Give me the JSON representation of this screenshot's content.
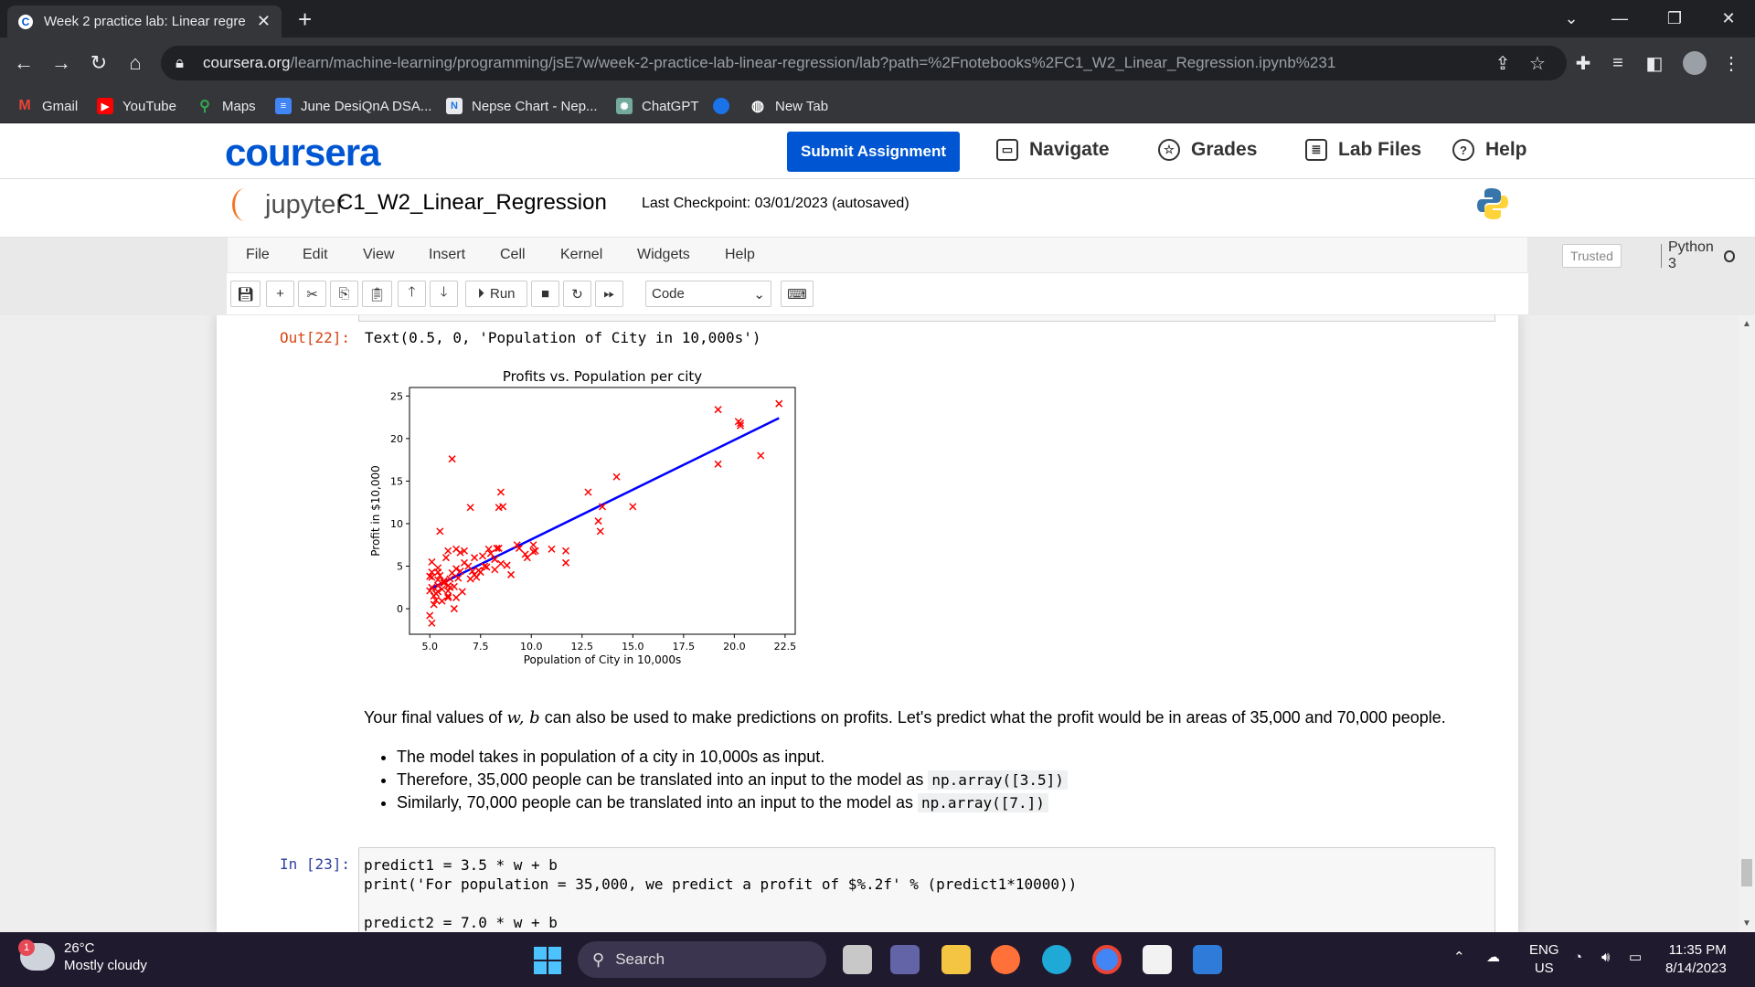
{
  "browser": {
    "tab_title": "Week 2 practice lab: Linear regre",
    "tab_favicon_letter": "C",
    "url_host": "coursera.org",
    "url_path": "/learn/machine-learning/programming/jsE7w/week-2-practice-lab-linear-regression/lab?path=%2Fnotebooks%2FC1_W2_Linear_Regression.ipynb%231",
    "bookmarks": [
      "Gmail",
      "YouTube",
      "Maps",
      "June DesiQnA DSA...",
      "Nepse Chart - Nep...",
      "ChatGPT",
      "",
      "New Tab"
    ]
  },
  "coursera": {
    "logo": "coursera",
    "submit_label": "Submit Assignment",
    "navigate_label": "Navigate",
    "grades_label": "Grades",
    "labfiles_label": "Lab Files",
    "help_label": "Help"
  },
  "jupyter": {
    "logo_text": "jupyter",
    "notebook_name": "C1_W2_Linear_Regression",
    "checkpoint": "Last Checkpoint: 03/01/2023  (autosaved)",
    "menu": [
      "File",
      "Edit",
      "View",
      "Insert",
      "Cell",
      "Kernel",
      "Widgets",
      "Help"
    ],
    "trusted": "Trusted",
    "kernel_name": "Python 3",
    "run_label": "Run",
    "cell_type": "Code"
  },
  "notebook": {
    "out_prompt": "Out[22]:",
    "out_text": "Text(0.5, 0, 'Population of City in 10,000s')",
    "md_para_before": "Your final values of ",
    "md_math": "w, b",
    "md_para_after": " can also be used to make predictions on profits. Let's predict what the profit would be in areas of 35,000 and 70,000 people.",
    "bullets": [
      {
        "text": "The model takes in population of a city in 10,000s as input.",
        "code": ""
      },
      {
        "text": "Therefore, 35,000 people can be translated into an input to the model as ",
        "code": "np.array([3.5])"
      },
      {
        "text": "Similarly, 70,000 people can be translated into an input to the model as ",
        "code": "np.array([7.])"
      }
    ],
    "in_prompt": "In [23]:",
    "code_lines": [
      "predict1 = 3.5 * w + b",
      "print('For population = 35,000, we predict a profit of $%.2f' % (predict1*10000))",
      "",
      "predict2 = 7.0 * w + b"
    ]
  },
  "chart_data": {
    "type": "scatter",
    "title": "Profits vs. Population per city",
    "xlabel": "Population of City in 10,000s",
    "ylabel": "Profit in $10,000",
    "xlim": [
      4.0,
      23.0
    ],
    "ylim": [
      -3.0,
      26.0
    ],
    "xticks": [
      "5.0",
      "7.5",
      "10.0",
      "12.5",
      "15.0",
      "17.5",
      "20.0",
      "22.5"
    ],
    "yticks": [
      "0",
      "5",
      "10",
      "15",
      "20",
      "25"
    ],
    "marker_color": "#ff0000",
    "line_color": "#0000ff",
    "points": [
      [
        6.1,
        17.6
      ],
      [
        5.5,
        9.1
      ],
      [
        8.5,
        13.7
      ],
      [
        7.0,
        11.9
      ],
      [
        5.9,
        6.8
      ],
      [
        8.4,
        11.9
      ],
      [
        7.5,
        4.3
      ],
      [
        8.6,
        12.0
      ],
      [
        6.5,
        6.6
      ],
      [
        5.0,
        3.8
      ],
      [
        5.7,
        3.3
      ],
      [
        14.2,
        15.5
      ],
      [
        5.7,
        3.1
      ],
      [
        6.3,
        7.0
      ],
      [
        5.8,
        6.0
      ],
      [
        5.2,
        1.5
      ],
      [
        5.1,
        -1.7
      ],
      [
        5.1,
        4.3
      ],
      [
        5.4,
        2.0
      ],
      [
        5.6,
        2.3
      ],
      [
        6.2,
        0.0
      ],
      [
        6.3,
        1.3
      ],
      [
        5.3,
        1.8
      ],
      [
        5.0,
        -0.8
      ],
      [
        5.1,
        5.5
      ],
      [
        5.9,
        2.7
      ],
      [
        10.1,
        6.7
      ],
      [
        8.4,
        7.1
      ],
      [
        9.7,
        6.4
      ],
      [
        5.4,
        4.8
      ],
      [
        6.3,
        4.7
      ],
      [
        6.4,
        3.6
      ],
      [
        7.6,
        6.2
      ],
      [
        5.4,
        4.3
      ],
      [
        8.2,
        4.6
      ],
      [
        5.9,
        1.3
      ],
      [
        5.4,
        3.4
      ],
      [
        5.1,
        3.7
      ],
      [
        8.3,
        7.1
      ],
      [
        9.3,
        7.5
      ],
      [
        13.5,
        12.0
      ],
      [
        13.4,
        9.1
      ],
      [
        13.3,
        10.3
      ],
      [
        12.8,
        13.7
      ],
      [
        11.7,
        6.8
      ],
      [
        11.0,
        7.0
      ],
      [
        9.8,
        6.0
      ],
      [
        9.4,
        7.1
      ],
      [
        10.1,
        7.5
      ],
      [
        20.3,
        21.8
      ],
      [
        20.3,
        21.5
      ],
      [
        20.2,
        22.0
      ],
      [
        19.2,
        23.4
      ],
      [
        21.3,
        18.0
      ],
      [
        22.2,
        24.1
      ],
      [
        19.2,
        17.0
      ],
      [
        7.8,
        4.9
      ],
      [
        7.2,
        4.0
      ],
      [
        6.9,
        5.0
      ],
      [
        5.1,
        2.5
      ],
      [
        11.7,
        5.4
      ],
      [
        8.5,
        5.3
      ],
      [
        7.9,
        7.0
      ],
      [
        9.0,
        4.0
      ],
      [
        6.6,
        2.0
      ],
      [
        5.7,
        3.0
      ],
      [
        6.0,
        3.5
      ],
      [
        7.4,
        4.5
      ],
      [
        6.7,
        5.4
      ],
      [
        15.0,
        12.0
      ],
      [
        8.0,
        6.5
      ],
      [
        6.1,
        4.2
      ],
      [
        7.2,
        6.0
      ],
      [
        6.5,
        4.4
      ],
      [
        5.4,
        2.7
      ],
      [
        5.5,
        3.9
      ],
      [
        5.3,
        1.0
      ],
      [
        6.2,
        2.6
      ],
      [
        7.0,
        3.5
      ],
      [
        8.2,
        5.8
      ],
      [
        5.6,
        0.9
      ],
      [
        5.9,
        2.1
      ],
      [
        7.3,
        3.7
      ],
      [
        6.7,
        6.8
      ],
      [
        8.8,
        5.1
      ],
      [
        7.7,
        5.0
      ],
      [
        5.2,
        0.5
      ],
      [
        6.0,
        2.5
      ],
      [
        10.2,
        6.8
      ],
      [
        7.1,
        4.4
      ],
      [
        5.0,
        2.1
      ],
      [
        5.9,
        1.5
      ]
    ],
    "fit_line": [
      [
        5.0,
        2.3
      ],
      [
        22.2,
        22.4
      ]
    ]
  }
}
